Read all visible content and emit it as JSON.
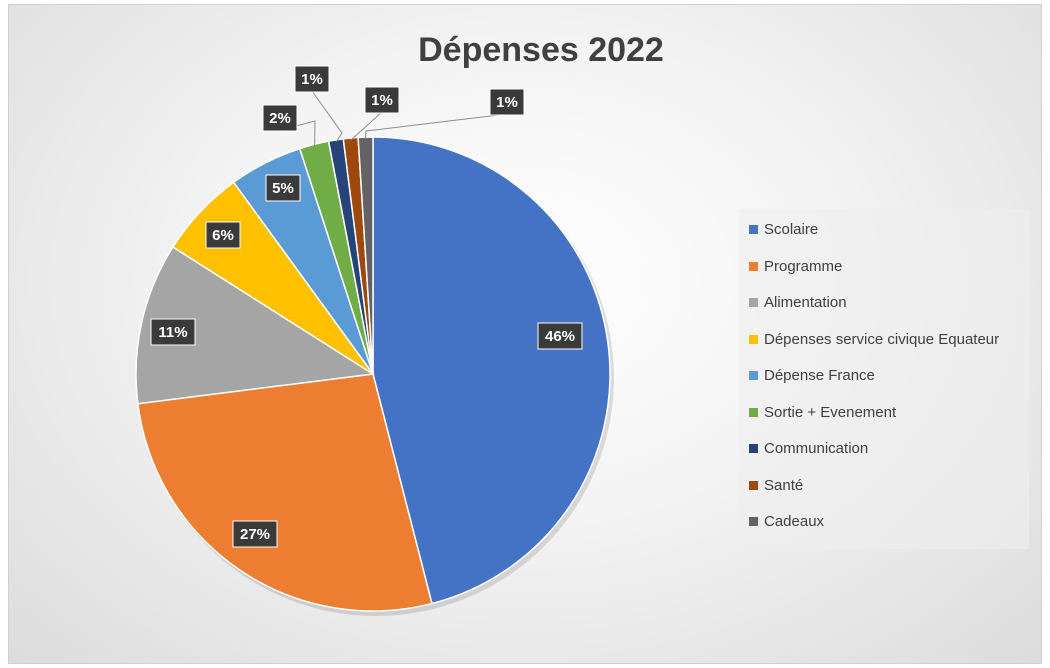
{
  "chart_data": {
    "type": "pie",
    "title": "Dépenses 2022",
    "legend_position": "right",
    "slices": [
      {
        "label": "Scolaire",
        "value": 46,
        "data_label": "46%",
        "color": "#4472C4"
      },
      {
        "label": "Programme",
        "value": 27,
        "data_label": "27%",
        "color": "#ED7D31"
      },
      {
        "label": "Alimentation",
        "value": 11,
        "data_label": "11%",
        "color": "#A5A5A5"
      },
      {
        "label": "Dépenses service civique Equateur",
        "value": 6,
        "data_label": "6%",
        "color": "#FFC000"
      },
      {
        "label": "Dépense France",
        "value": 5,
        "data_label": "5%",
        "color": "#5B9BD5"
      },
      {
        "label": "Sortie + Evenement",
        "value": 2,
        "data_label": "2%",
        "color": "#70AD47"
      },
      {
        "label": "Communication",
        "value": 1,
        "data_label": "1%",
        "color": "#264478"
      },
      {
        "label": "Santé",
        "value": 1,
        "data_label": "1%",
        "color": "#9E480E"
      },
      {
        "label": "Cadeaux",
        "value": 1,
        "data_label": "1%",
        "color": "#636363"
      }
    ]
  }
}
